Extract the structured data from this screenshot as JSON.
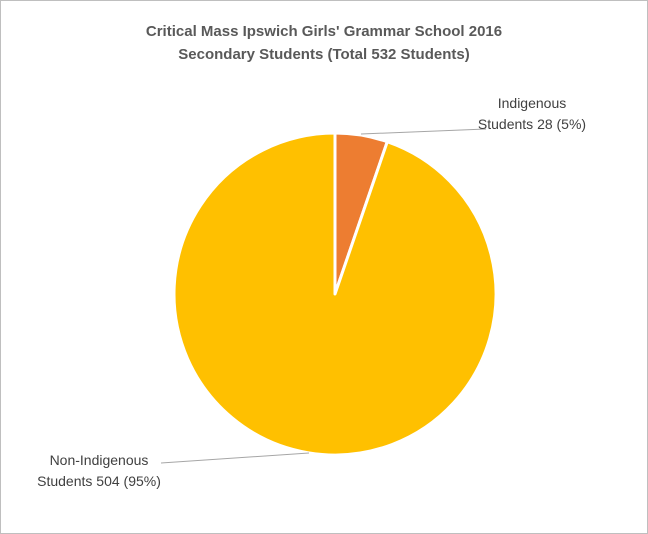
{
  "chart_data": {
    "type": "pie",
    "title": "Critical Mass Ipswich Girls' Grammar School 2016",
    "subtitle": "Secondary Students (Total 532 Students)",
    "categories": [
      "Indigenous Students",
      "Non-Indigenous Students"
    ],
    "values": [
      28,
      504
    ],
    "value_labels": [
      "28 (5%)",
      "504 (95%)"
    ],
    "colors": [
      "#ed7d31",
      "#ffc000"
    ]
  }
}
